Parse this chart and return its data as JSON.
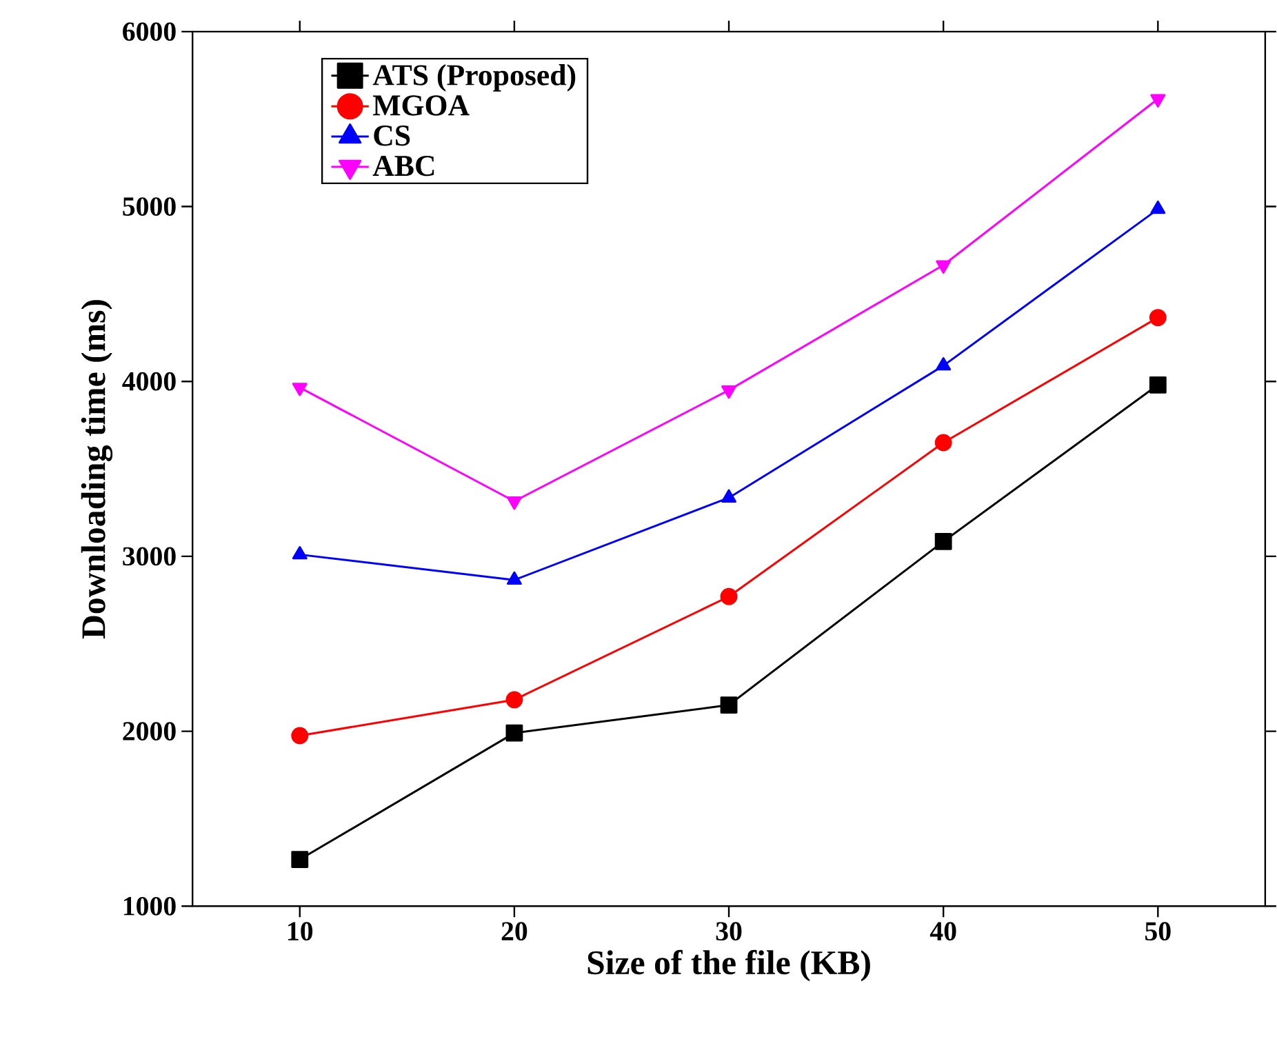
{
  "chart_data": {
    "type": "line",
    "xlabel": "Size of the file (KB)",
    "ylabel": "Downloading time (ms)",
    "x": [
      10,
      20,
      30,
      40,
      50
    ],
    "xlim": [
      5,
      55
    ],
    "xticks": [
      10,
      20,
      30,
      40,
      50
    ],
    "ylim": [
      1000,
      6000
    ],
    "yticks": [
      1000,
      2000,
      3000,
      4000,
      5000,
      6000
    ],
    "legend": "top left",
    "grid": false,
    "series": [
      {
        "name": "ATS (Proposed)",
        "color": "#000000",
        "marker": "square",
        "values": [
          1267,
          1990,
          2150,
          3085,
          3980
        ]
      },
      {
        "name": "MGOA",
        "color": "#ff0000",
        "marker": "circle",
        "values": [
          1975,
          2180,
          2770,
          3650,
          4365
        ]
      },
      {
        "name": "CS",
        "color": "#0000ff",
        "marker": "triangle",
        "values": [
          3010,
          2865,
          3335,
          4090,
          4985
        ]
      },
      {
        "name": "ABC",
        "color": "#ff00ff",
        "marker": "triangle-down",
        "values": [
          3965,
          3315,
          3950,
          4665,
          5615
        ]
      }
    ]
  }
}
